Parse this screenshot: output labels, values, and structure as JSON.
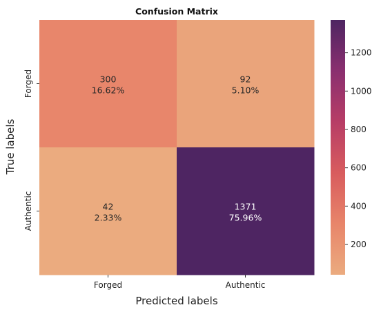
{
  "chart_data": {
    "type": "heatmap",
    "title": "Confusion Matrix",
    "xlabel": "Predicted labels",
    "ylabel": "True labels",
    "x_categories": [
      "Forged",
      "Authentic"
    ],
    "y_categories": [
      "Forged",
      "Authentic"
    ],
    "values": [
      [
        300,
        92
      ],
      [
        42,
        1371
      ]
    ],
    "percent_labels": [
      [
        "16.62%",
        "5.10%"
      ],
      [
        "2.33%",
        "75.96%"
      ]
    ],
    "colorbar": {
      "min": 42,
      "max": 1371,
      "ticks": [
        200,
        400,
        600,
        800,
        1000,
        1200
      ],
      "colors": [
        "#ebab7f",
        "#e8856a",
        "#d85c5e",
        "#b73d66",
        "#8a2f6f",
        "#4e2562"
      ]
    },
    "grid": false,
    "legend": "colorbar-right"
  }
}
